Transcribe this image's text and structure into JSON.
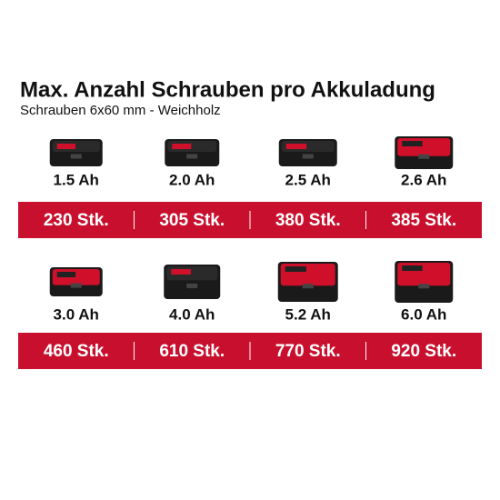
{
  "header": {
    "title": "Max. Anzahl Schrauben pro Akkuladung",
    "subtitle": "Schrauben 6x60 mm - Weichholz"
  },
  "rows": [
    [
      {
        "capacity": "1.5 Ah",
        "count": "230 Stk."
      },
      {
        "capacity": "2.0 Ah",
        "count": "305 Stk."
      },
      {
        "capacity": "2.5 Ah",
        "count": "380 Stk."
      },
      {
        "capacity": "2.6 Ah",
        "count": "385 Stk."
      }
    ],
    [
      {
        "capacity": "3.0 Ah",
        "count": "460 Stk."
      },
      {
        "capacity": "4.0 Ah",
        "count": "610 Stk."
      },
      {
        "capacity": "5.2 Ah",
        "count": "770 Stk."
      },
      {
        "capacity": "6.0 Ah",
        "count": "920 Stk."
      }
    ]
  ]
}
